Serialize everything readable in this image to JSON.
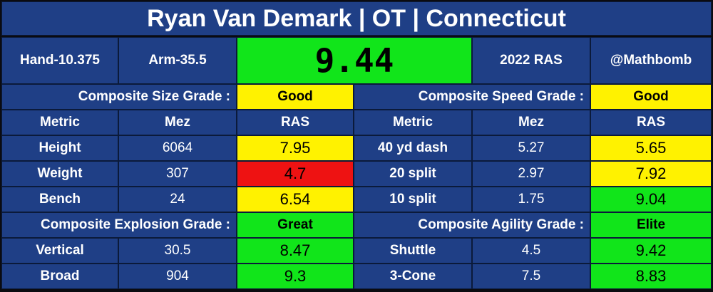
{
  "title": "Ryan Van Demark | OT | Connecticut",
  "header": {
    "hand": "Hand-10.375",
    "arm": "Arm-35.5",
    "score": "9.44",
    "score_color": "#11e51a",
    "year": "2022 RAS",
    "handle": "@Mathbomb"
  },
  "colors": {
    "panel": "#1f3f86",
    "green": "#11e51a",
    "yellow": "#fff200",
    "red": "#ee1212"
  },
  "columns": {
    "metric": "Metric",
    "mez": "Mez",
    "ras": "RAS"
  },
  "size": {
    "label": "Composite Size Grade :",
    "grade": "Good",
    "rows": [
      {
        "metric": "Height",
        "mez": "6064",
        "ras": "7.95",
        "color": "#fff200"
      },
      {
        "metric": "Weight",
        "mez": "307",
        "ras": "4.7",
        "color": "#ee1212"
      },
      {
        "metric": "Bench",
        "mez": "24",
        "ras": "6.54",
        "color": "#fff200"
      }
    ]
  },
  "speed": {
    "label": "Composite Speed Grade :",
    "grade": "Good",
    "rows": [
      {
        "metric": "40 yd dash",
        "mez": "5.27",
        "ras": "5.65",
        "color": "#fff200"
      },
      {
        "metric": "20 split",
        "mez": "2.97",
        "ras": "7.92",
        "color": "#fff200"
      },
      {
        "metric": "10 split",
        "mez": "1.75",
        "ras": "9.04",
        "color": "#11e51a"
      }
    ]
  },
  "explosion": {
    "label": "Composite Explosion Grade :",
    "grade": "Great",
    "rows": [
      {
        "metric": "Vertical",
        "mez": "30.5",
        "ras": "8.47",
        "color": "#11e51a"
      },
      {
        "metric": "Broad",
        "mez": "904",
        "ras": "9.3",
        "color": "#11e51a"
      }
    ]
  },
  "agility": {
    "label": "Composite Agility Grade :",
    "grade": "Elite",
    "rows": [
      {
        "metric": "Shuttle",
        "mez": "4.5",
        "ras": "9.42",
        "color": "#11e51a"
      },
      {
        "metric": "3-Cone",
        "mez": "7.5",
        "ras": "8.83",
        "color": "#11e51a"
      }
    ]
  },
  "grade_colors": {
    "size": "#fff200",
    "speed": "#fff200",
    "explosion": "#11e51a",
    "agility": "#11e51a"
  }
}
